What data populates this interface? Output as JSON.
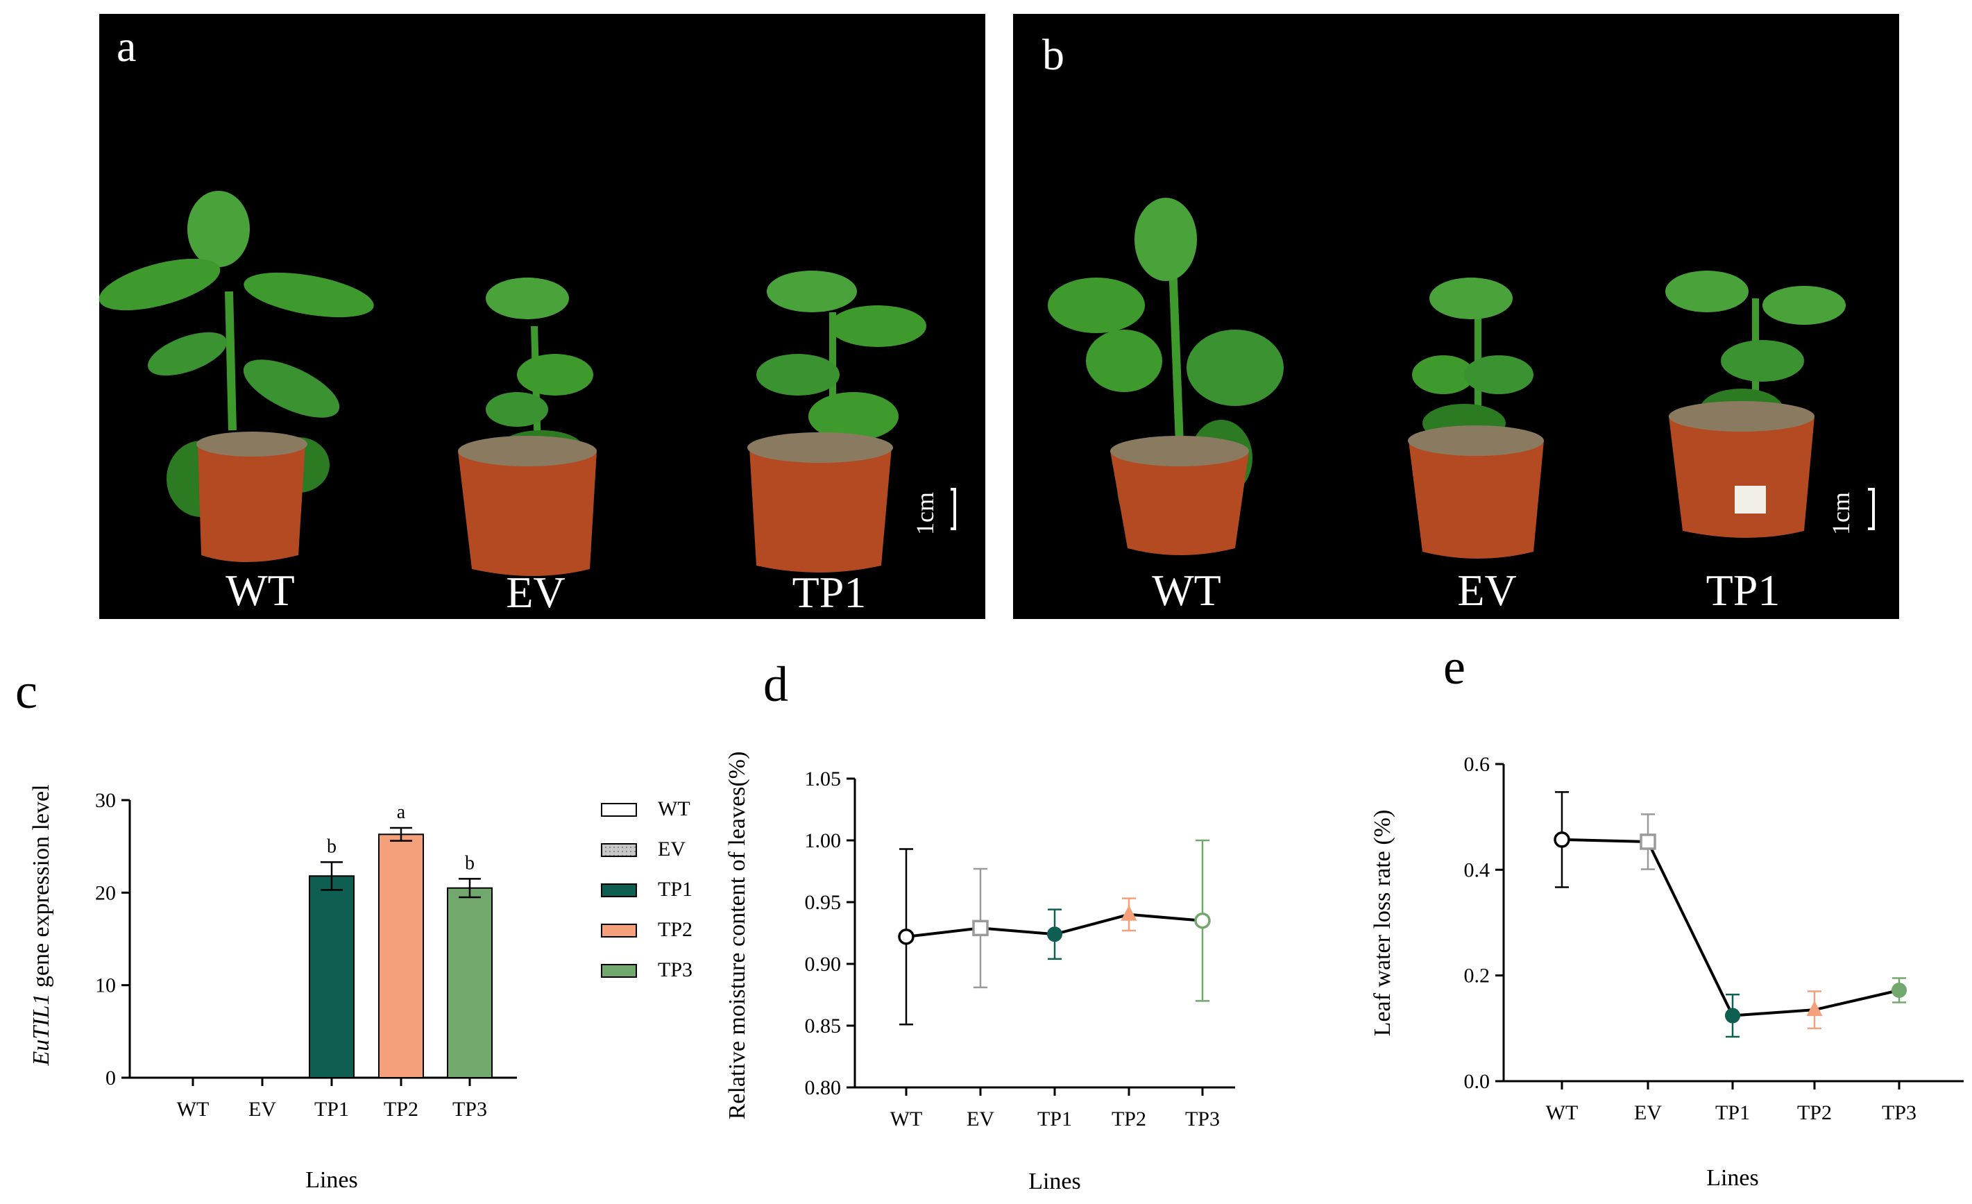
{
  "colors": {
    "WT": "#ffffff",
    "EV": "#bfbfbf",
    "TP1": "#0f5e52",
    "TP2": "#f5a07a",
    "TP3": "#72a86e",
    "photo_bg": "#000000",
    "pot": "#b44a22",
    "leaf": "#3f9a2e",
    "leaf_dark": "#2c7a22",
    "soil": "#8a7a60"
  },
  "panel_a": {
    "letter": "a",
    "labels": [
      "WT",
      "EV",
      "TP1"
    ],
    "scale": "1cm"
  },
  "panel_b": {
    "letter": "b",
    "labels": [
      "WT",
      "EV",
      "TP1"
    ],
    "scale": "1cm"
  },
  "panel_c": {
    "letter": "c"
  },
  "panel_d": {
    "letter": "d"
  },
  "panel_e": {
    "letter": "e"
  },
  "chart_data": [
    {
      "id": "c",
      "type": "bar",
      "categories": [
        "WT",
        "EV",
        "TP1",
        "TP2",
        "TP3"
      ],
      "values": [
        0,
        0,
        21.8,
        26.3,
        20.5
      ],
      "errors": [
        0,
        0,
        1.5,
        0.7,
        1.0
      ],
      "significance": [
        "",
        "",
        "b",
        "a",
        "b"
      ],
      "ylabel_italic": "EuTIL1",
      "ylabel_rest": " gene expression level",
      "xlabel": "Lines",
      "ylim": [
        0,
        30
      ],
      "yticks": [
        0,
        10,
        20,
        30
      ],
      "legend": [
        "WT",
        "EV",
        "TP1",
        "TP2",
        "TP3"
      ]
    },
    {
      "id": "d",
      "type": "line",
      "categories": [
        "WT",
        "EV",
        "TP1",
        "TP2",
        "TP3"
      ],
      "values": [
        0.922,
        0.929,
        0.924,
        0.94,
        0.935
      ],
      "errors": [
        0.071,
        0.048,
        0.02,
        0.013,
        0.065
      ],
      "markers": [
        "open-circle",
        "open-square",
        "filled-circle",
        "triangle",
        "open-circle"
      ],
      "ylabel": "Relative moisture content of leaves(%)",
      "xlabel": "Lines",
      "ylim": [
        0.8,
        1.05
      ],
      "yticks": [
        "0.80",
        "0.85",
        "0.90",
        "0.95",
        "1.00",
        "1.05"
      ]
    },
    {
      "id": "e",
      "type": "line",
      "categories": [
        "WT",
        "EV",
        "TP1",
        "TP2",
        "TP3"
      ],
      "values": [
        0.457,
        0.453,
        0.124,
        0.135,
        0.172
      ],
      "errors": [
        0.09,
        0.052,
        0.04,
        0.035,
        0.023
      ],
      "markers": [
        "open-circle",
        "open-square",
        "filled-circle",
        "triangle",
        "filled-circle"
      ],
      "ylabel": "Leaf water loss rate (%)",
      "xlabel": "Lines",
      "ylim": [
        0,
        0.6
      ],
      "yticks": [
        "0.0",
        "0.2",
        "0.4",
        "0.6"
      ]
    }
  ]
}
